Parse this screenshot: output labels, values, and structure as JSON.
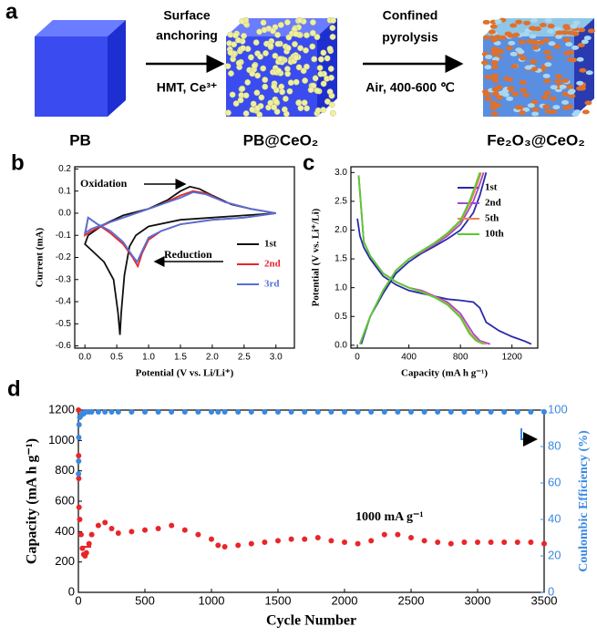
{
  "panel_a": {
    "label": "a",
    "stages": [
      "PB",
      "PB@CeO₂",
      "Fe₂O₃@CeO₂"
    ],
    "step1_top": [
      "Surface",
      "anchoring"
    ],
    "step1_bottom": "HMT, Ce³⁺",
    "step2_top": [
      "Confined",
      "pyrolysis"
    ],
    "step2_bottom": "Air, 400-600 ℃"
  },
  "chart_data": [
    {
      "type": "line",
      "label": "b",
      "xlabel": "Potential (V vs. Li/Li⁺)",
      "ylabel": "Current (mA)",
      "xlim": [
        -0.16,
        3.29
      ],
      "ylim": [
        -0.61,
        0.21
      ],
      "xticks": [
        {
          "value": 0,
          "label": "0.0"
        },
        0.5,
        {
          "value": 1,
          "label": "1.0"
        },
        1.5,
        {
          "value": 2,
          "label": "2.0"
        },
        2.5,
        {
          "value": 3,
          "label": "3.0"
        }
      ],
      "yticks": [
        -0.6,
        -0.5,
        -0.4,
        -0.3,
        -0.2,
        -0.1,
        {
          "value": 0,
          "label": "0.0"
        },
        0.1,
        0.2
      ],
      "legend": "lower right",
      "annotations": [
        "Oxidation",
        "Reduction"
      ],
      "series": [
        {
          "name": "1st",
          "color": "#111111",
          "x": [
            3.0,
            2.5,
            2.0,
            1.5,
            1.0,
            0.8,
            0.7,
            0.62,
            0.57,
            0.55,
            0.52,
            0.45,
            0.3,
            0.15,
            0.0,
            0.05,
            0.3,
            0.6,
            1.0,
            1.3,
            1.5,
            1.65,
            1.8,
            2.0,
            2.3,
            2.6,
            3.0
          ],
          "values": [
            0.0,
            -0.01,
            -0.02,
            -0.03,
            -0.06,
            -0.1,
            -0.15,
            -0.28,
            -0.45,
            -0.55,
            -0.45,
            -0.3,
            -0.22,
            -0.18,
            -0.14,
            -0.1,
            -0.05,
            -0.01,
            0.02,
            0.06,
            0.1,
            0.12,
            0.11,
            0.08,
            0.04,
            0.02,
            0.0
          ]
        },
        {
          "name": "2nd",
          "color": "#e8262a",
          "x": [
            3.0,
            2.5,
            2.0,
            1.5,
            1.2,
            1.0,
            0.9,
            0.83,
            0.75,
            0.6,
            0.4,
            0.2,
            0.05,
            0.0,
            0.1,
            0.4,
            0.8,
            1.2,
            1.5,
            1.7,
            1.9,
            2.2,
            2.6,
            3.0
          ],
          "values": [
            0.0,
            -0.02,
            -0.03,
            -0.05,
            -0.08,
            -0.12,
            -0.18,
            -0.24,
            -0.2,
            -0.14,
            -0.09,
            -0.05,
            -0.02,
            -0.1,
            -0.08,
            -0.04,
            0.0,
            0.04,
            0.08,
            0.1,
            0.09,
            0.05,
            0.02,
            0.0
          ]
        },
        {
          "name": "3rd",
          "color": "#5470d8",
          "x": [
            3.0,
            2.5,
            2.0,
            1.5,
            1.2,
            1.0,
            0.9,
            0.82,
            0.74,
            0.6,
            0.4,
            0.2,
            0.05,
            0.0,
            0.1,
            0.4,
            0.8,
            1.2,
            1.5,
            1.7,
            1.9,
            2.2,
            2.6,
            3.0
          ],
          "values": [
            0.0,
            -0.02,
            -0.03,
            -0.05,
            -0.08,
            -0.11,
            -0.17,
            -0.22,
            -0.19,
            -0.13,
            -0.08,
            -0.05,
            -0.02,
            -0.09,
            -0.07,
            -0.04,
            0.0,
            0.04,
            0.07,
            0.095,
            0.085,
            0.05,
            0.02,
            0.0
          ]
        }
      ]
    },
    {
      "type": "line",
      "label": "c",
      "xlabel": "Capacity (mA h g⁻¹)",
      "ylabel": "Potential (V vs. Li⁺/Li)",
      "xlim": [
        -50,
        1400
      ],
      "ylim": [
        -0.05,
        3.1
      ],
      "xticks": [
        0,
        400,
        800,
        1200
      ],
      "yticks": [
        {
          "value": 0,
          "label": "0.0"
        },
        0.5,
        {
          "value": 1,
          "label": "1.0"
        },
        1.5,
        {
          "value": 2,
          "label": "2.0"
        },
        2.5,
        {
          "value": 3,
          "label": "3.0"
        }
      ],
      "legend": "upper right",
      "series": [
        {
          "name": "1st",
          "color": "#2a2aa8",
          "x": [
            0,
            20,
            50,
            100,
            200,
            300,
            400,
            500,
            600,
            700,
            800,
            900,
            950,
            1000,
            1100,
            1200,
            1300,
            1350,
            null,
            30,
            100,
            200,
            300,
            400,
            500,
            600,
            700,
            800,
            900,
            950,
            1000
          ],
          "values": [
            2.2,
            1.9,
            1.7,
            1.5,
            1.2,
            1.05,
            0.95,
            0.9,
            0.85,
            0.8,
            0.78,
            0.75,
            0.65,
            0.4,
            0.25,
            0.15,
            0.07,
            0.02,
            null,
            0.02,
            0.5,
            0.9,
            1.25,
            1.45,
            1.6,
            1.72,
            1.85,
            2.0,
            2.3,
            2.6,
            3.0
          ]
        },
        {
          "name": "2nd",
          "color": "#9b4dca",
          "x": [
            10,
            50,
            100,
            200,
            300,
            400,
            500,
            600,
            700,
            800,
            900,
            950,
            1030,
            null,
            20,
            100,
            200,
            300,
            400,
            500,
            600,
            700,
            800,
            900,
            950,
            980
          ],
          "values": [
            2.95,
            1.8,
            1.55,
            1.25,
            1.1,
            1.0,
            0.95,
            0.85,
            0.75,
            0.55,
            0.2,
            0.08,
            0.02,
            null,
            0.02,
            0.5,
            0.95,
            1.3,
            1.5,
            1.62,
            1.75,
            1.9,
            2.1,
            2.5,
            2.8,
            3.0
          ]
        },
        {
          "name": "5th",
          "color": "#f08050",
          "x": [
            10,
            50,
            100,
            200,
            300,
            400,
            500,
            600,
            700,
            800,
            880,
            930,
            1000,
            null,
            20,
            100,
            200,
            300,
            400,
            500,
            600,
            700,
            800,
            880,
            930,
            960
          ],
          "values": [
            2.95,
            1.8,
            1.55,
            1.25,
            1.1,
            1.0,
            0.93,
            0.84,
            0.72,
            0.5,
            0.2,
            0.08,
            0.02,
            null,
            0.02,
            0.5,
            0.95,
            1.3,
            1.5,
            1.63,
            1.77,
            1.93,
            2.15,
            2.5,
            2.8,
            3.0
          ]
        },
        {
          "name": "10th",
          "color": "#55cc33",
          "x": [
            10,
            50,
            100,
            200,
            300,
            400,
            500,
            600,
            700,
            800,
            870,
            920,
            980,
            null,
            20,
            100,
            200,
            300,
            400,
            500,
            600,
            700,
            800,
            870,
            920,
            950
          ],
          "values": [
            2.95,
            1.8,
            1.55,
            1.25,
            1.1,
            1.0,
            0.92,
            0.83,
            0.7,
            0.48,
            0.2,
            0.08,
            0.02,
            null,
            0.02,
            0.5,
            0.95,
            1.3,
            1.5,
            1.64,
            1.78,
            1.95,
            2.17,
            2.5,
            2.8,
            3.0
          ]
        }
      ]
    },
    {
      "type": "scatter",
      "label": "d",
      "xlabel": "Cycle Number",
      "ylabel": "Capacity (mA h g⁻¹)",
      "y2label": "Coulombic Efficiency (%)",
      "xlim": [
        0,
        3500
      ],
      "ylim": [
        0,
        1200
      ],
      "y2lim": [
        0,
        100
      ],
      "xticks": [
        0,
        500,
        1000,
        1500,
        2000,
        2500,
        3000,
        3500
      ],
      "yticks": [
        0,
        200,
        400,
        600,
        800,
        1000,
        1200
      ],
      "y2ticks": [
        0,
        20,
        40,
        60,
        80,
        100
      ],
      "annotations": [
        "1000 mA g⁻¹"
      ],
      "series": [
        {
          "color": "#e8262a",
          "x": [
            1,
            2,
            3,
            5,
            10,
            20,
            30,
            40,
            50,
            60,
            80,
            100,
            150,
            200,
            250,
            300,
            400,
            500,
            600,
            700,
            800,
            900,
            1000,
            1050,
            1100,
            1200,
            1300,
            1400,
            1500,
            1600,
            1700,
            1800,
            1900,
            2000,
            2100,
            2200,
            2300,
            2400,
            2500,
            2600,
            2700,
            2800,
            2900,
            3000,
            3100,
            3200,
            3300,
            3400,
            3500
          ],
          "values": [
            1200,
            900,
            750,
            560,
            480,
            380,
            290,
            250,
            240,
            260,
            320,
            380,
            440,
            460,
            420,
            390,
            400,
            410,
            420,
            440,
            410,
            380,
            350,
            310,
            300,
            310,
            320,
            330,
            340,
            350,
            350,
            360,
            340,
            330,
            320,
            340,
            380,
            380,
            360,
            340,
            330,
            320,
            330,
            330,
            330,
            330,
            330,
            330,
            320
          ]
        },
        {
          "color": "#3a88e0",
          "axis": "y2",
          "x": [
            1,
            2,
            3,
            5,
            10,
            20,
            30,
            40,
            50,
            60,
            80,
            100,
            150,
            200,
            250,
            300,
            400,
            500,
            600,
            700,
            800,
            900,
            1000,
            1050,
            1100,
            1200,
            1300,
            1400,
            1500,
            1600,
            1700,
            1800,
            1900,
            2000,
            2100,
            2200,
            2300,
            2400,
            2500,
            2600,
            2700,
            2800,
            2900,
            3000,
            3100,
            3200,
            3300,
            3400,
            3500
          ],
          "values": [
            65,
            72,
            85,
            92,
            96,
            97,
            98,
            98,
            99,
            99,
            99,
            99,
            99,
            99,
            99,
            99,
            99,
            99,
            99,
            99,
            99,
            99,
            99,
            99,
            99,
            99,
            99,
            99,
            99,
            99,
            99,
            99,
            99,
            99,
            99,
            99,
            99,
            99,
            99,
            99,
            99,
            99,
            99,
            99,
            99,
            99,
            99,
            99,
            99
          ]
        }
      ]
    }
  ]
}
